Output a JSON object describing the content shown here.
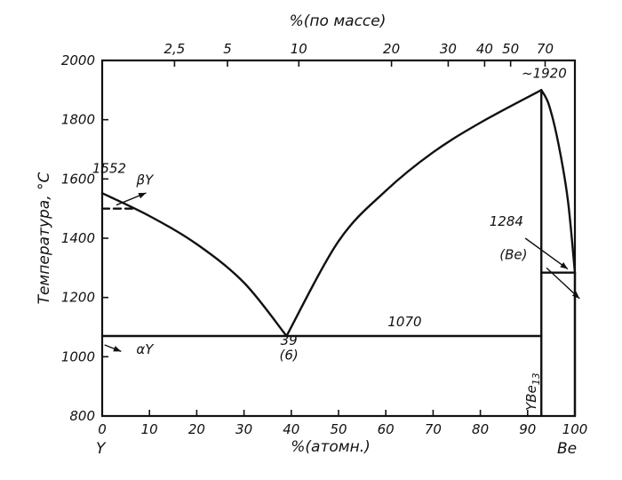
{
  "chart_data": {
    "type": "line",
    "xlabel": "%(атомн.)",
    "x2label": "%(по массе)",
    "ylabel": "Температура, °С",
    "xlim": [
      0,
      100
    ],
    "ylim": [
      800,
      2000
    ],
    "x_ticks": [
      0,
      10,
      20,
      30,
      40,
      50,
      60,
      70,
      80,
      90,
      100
    ],
    "y_ticks": [
      800,
      1000,
      1200,
      1400,
      1600,
      1800,
      2000
    ],
    "mass_ticks": [
      {
        "label": "2,5",
        "at": 15.3
      },
      {
        "label": "5",
        "at": 26.5
      },
      {
        "label": "10",
        "at": 41.6
      },
      {
        "label": "20",
        "at": 61.2
      },
      {
        "label": "30",
        "at": 73.2
      },
      {
        "label": "40",
        "at": 80.9
      },
      {
        "label": "50",
        "at": 86.4
      },
      {
        "label": "70",
        "at": 93.7
      }
    ],
    "grid": false,
    "left_element": "Y",
    "right_element": "Be",
    "compound_label": "YBe",
    "compound_subscript": "13",
    "series": [
      {
        "points": [
          [
            0,
            1552
          ],
          [
            10,
            1475
          ],
          [
            20,
            1380
          ],
          [
            30,
            1250
          ],
          [
            39,
            1070
          ]
        ]
      },
      {
        "points": [
          [
            39,
            1070
          ],
          [
            50,
            1390
          ],
          [
            60,
            1560
          ],
          [
            70,
            1690
          ],
          [
            80,
            1790
          ],
          [
            92.9,
            1900
          ]
        ]
      },
      {
        "points": [
          [
            92.9,
            1900
          ],
          [
            94.5,
            1850
          ],
          [
            96.5,
            1720
          ],
          [
            98.5,
            1530
          ],
          [
            100,
            1284
          ]
        ]
      },
      {
        "points": [
          [
            0,
            1070
          ],
          [
            92.9,
            1070
          ]
        ]
      },
      {
        "points": [
          [
            92.9,
            1284
          ],
          [
            100,
            1284
          ]
        ]
      },
      {
        "points": [
          [
            92.9,
            800
          ],
          [
            92.9,
            1900
          ]
        ]
      },
      {
        "points": [
          [
            100,
            800
          ],
          [
            100,
            1284
          ]
        ]
      }
    ],
    "dashed": {
      "points": [
        [
          0,
          1500
        ],
        [
          7,
          1500
        ]
      ]
    },
    "annotations": [
      {
        "text": "1552",
        "x": 1.5,
        "y": 1620
      },
      {
        "text": "βY",
        "x": 9,
        "y": 1582
      },
      {
        "text": "αY",
        "x": 9,
        "y": 1010
      },
      {
        "text": "39",
        "x": 39.5,
        "y": 1040
      },
      {
        "text": "(6)",
        "x": 39.5,
        "y": 990
      },
      {
        "text": "1070",
        "x": 64,
        "y": 1103
      },
      {
        "text": "~1920",
        "x": 93.5,
        "y": 1942
      },
      {
        "text": "1284",
        "x": 85.5,
        "y": 1442
      },
      {
        "text": "(Be)",
        "x": 87,
        "y": 1330
      }
    ],
    "pointers": [
      {
        "from": [
          3,
          1512
        ],
        "to": [
          9.3,
          1553
        ]
      },
      {
        "from": [
          0.5,
          1040
        ],
        "to": [
          4,
          1018
        ]
      },
      {
        "from": [
          89.5,
          1400
        ],
        "to": [
          98.5,
          1296
        ]
      },
      {
        "from": [
          94,
          1300
        ],
        "to": [
          101,
          1196
        ]
      }
    ]
  }
}
